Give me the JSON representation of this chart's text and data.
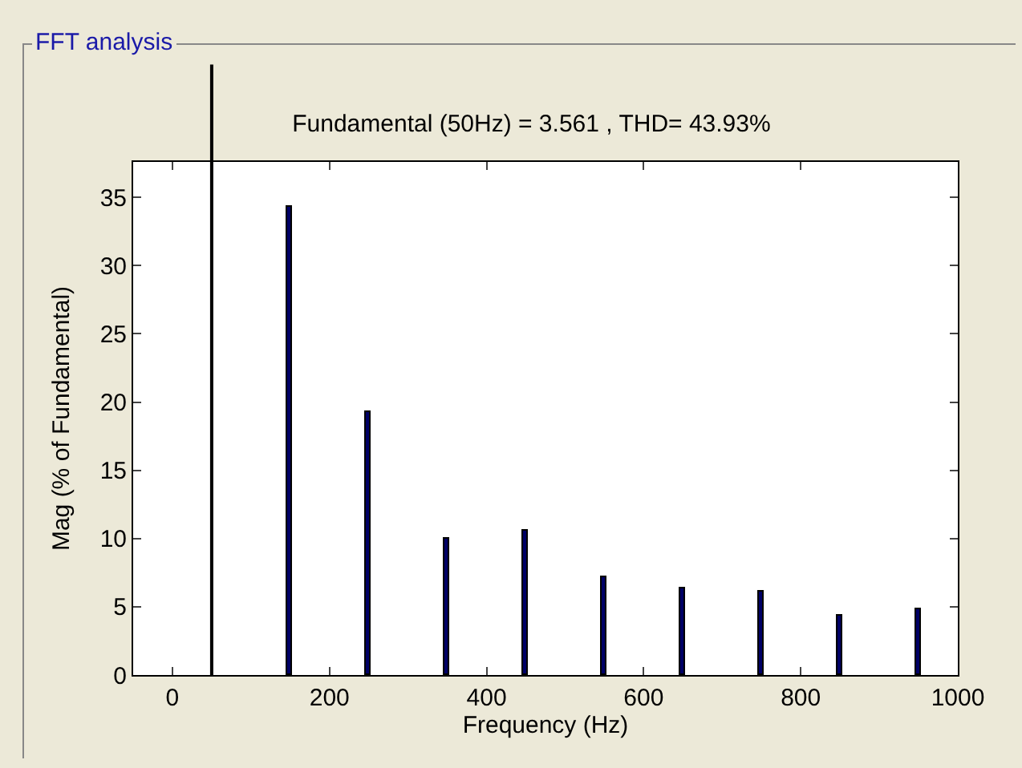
{
  "chart_data": {
    "type": "bar",
    "title": "Fundamental (50Hz) = 3.561 , THD= 43.93%",
    "xlabel": "Frequency (Hz)",
    "ylabel": "Mag (% of Fundamental)",
    "annotations": [
      "FFT analysis"
    ],
    "x": [
      150,
      250,
      350,
      450,
      550,
      650,
      750,
      850,
      950
    ],
    "values": [
      34.3,
      19.3,
      10.0,
      10.6,
      7.2,
      6.3,
      6.1,
      4.3,
      4.8
    ],
    "color": "#000066",
    "xlim": [
      -50,
      1000
    ],
    "xticks": [
      0,
      200,
      400,
      600,
      800,
      1000
    ],
    "ylim": [
      0,
      37.6
    ],
    "yticks": [
      0,
      5,
      10,
      15,
      20,
      25,
      30,
      35
    ],
    "ref_lines": [
      {
        "axis": "x",
        "value": 50,
        "color": "#000000"
      }
    ],
    "grid": false
  }
}
